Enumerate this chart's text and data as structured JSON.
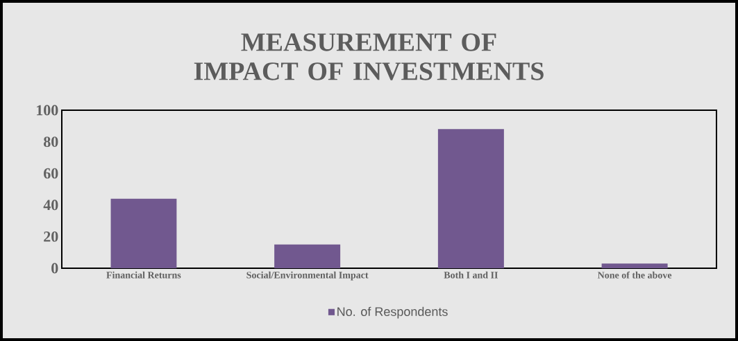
{
  "chart_data": {
    "type": "bar",
    "title": "MEASUREMENT OF IMPACT OF INVESTMENTS",
    "categories": [
      "Financial Returns",
      "Social/Environmental Impact",
      "Both I and II",
      "None of the above"
    ],
    "series": [
      {
        "name": "No. of Respondents",
        "color": "#71588f",
        "values": [
          44,
          15,
          88,
          3
        ]
      }
    ],
    "ylim": [
      0,
      100
    ],
    "yticks": [
      0,
      20,
      40,
      60,
      80,
      100
    ],
    "grid": false,
    "legend": "bottom"
  }
}
